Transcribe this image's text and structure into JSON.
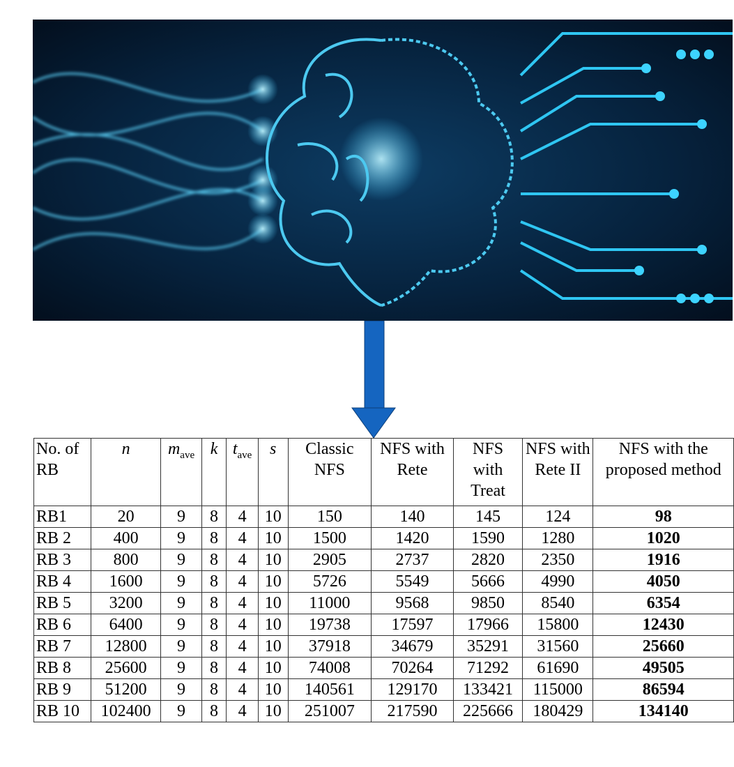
{
  "figure": {
    "hero_image": "brain-circuit-illustration",
    "arrow_color": "#1565c0"
  },
  "table": {
    "headers": [
      {
        "text": "No. of RB"
      },
      {
        "var": "n",
        "sub": ""
      },
      {
        "var": "m",
        "sub": "ave"
      },
      {
        "var": "k",
        "sub": ""
      },
      {
        "var": "t",
        "sub": "ave"
      },
      {
        "var": "s",
        "sub": ""
      },
      {
        "text": "Classic NFS"
      },
      {
        "text": "NFS with Rete"
      },
      {
        "text": "NFS with Treat"
      },
      {
        "text": "NFS with Rete II"
      },
      {
        "text": "NFS with the proposed method"
      }
    ],
    "rows": [
      [
        "RB1",
        "20",
        "9",
        "8",
        "4",
        "10",
        "150",
        "140",
        "145",
        "124",
        "98"
      ],
      [
        "RB 2",
        "400",
        "9",
        "8",
        "4",
        "10",
        "1500",
        "1420",
        "1590",
        "1280",
        "1020"
      ],
      [
        "RB 3",
        "800",
        "9",
        "8",
        "4",
        "10",
        "2905",
        "2737",
        "2820",
        "2350",
        "1916"
      ],
      [
        "RB 4",
        "1600",
        "9",
        "8",
        "4",
        "10",
        "5726",
        "5549",
        "5666",
        "4990",
        "4050"
      ],
      [
        "RB 5",
        "3200",
        "9",
        "8",
        "4",
        "10",
        "11000",
        "9568",
        "9850",
        "8540",
        "6354"
      ],
      [
        "RB 6",
        "6400",
        "9",
        "8",
        "4",
        "10",
        "19738",
        "17597",
        "17966",
        "15800",
        "12430"
      ],
      [
        "RB 7",
        "12800",
        "9",
        "8",
        "4",
        "10",
        "37918",
        "34679",
        "35291",
        "31560",
        "25660"
      ],
      [
        "RB 8",
        "25600",
        "9",
        "8",
        "4",
        "10",
        "74008",
        "70264",
        "71292",
        "61690",
        "49505"
      ],
      [
        "RB 9",
        "51200",
        "9",
        "8",
        "4",
        "10",
        "140561",
        "129170",
        "133421",
        "115000",
        "86594"
      ],
      [
        "RB 10",
        "102400",
        "9",
        "8",
        "4",
        "10",
        "251007",
        "217590",
        "225666",
        "180429",
        "134140"
      ]
    ]
  }
}
